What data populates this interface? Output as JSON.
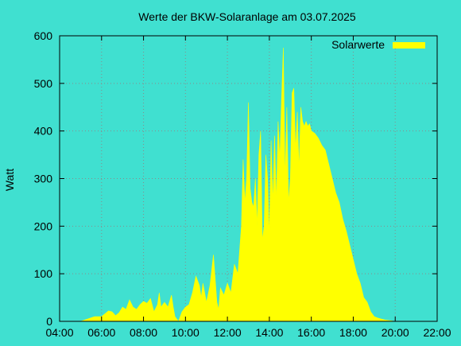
{
  "chart_data": {
    "type": "area",
    "title": "Werte der BKW-Solaranlage am 03.07.2025",
    "xlabel": "",
    "ylabel": "Watt",
    "xlim": [
      "04:00",
      "22:00"
    ],
    "ylim": [
      0,
      600
    ],
    "x_ticks": [
      "04:00",
      "06:00",
      "08:00",
      "10:00",
      "12:00",
      "14:00",
      "16:00",
      "18:00",
      "20:00",
      "22:00"
    ],
    "y_ticks": [
      0,
      100,
      200,
      300,
      400,
      500,
      600
    ],
    "grid": true,
    "legend_position": "top-right",
    "series": [
      {
        "name": "Solarwerte",
        "color": "#ffff00",
        "x": [
          "05:00",
          "05:20",
          "05:40",
          "06:00",
          "06:20",
          "06:30",
          "06:40",
          "06:50",
          "07:00",
          "07:10",
          "07:20",
          "07:30",
          "07:40",
          "07:50",
          "08:00",
          "08:10",
          "08:20",
          "08:30",
          "08:40",
          "08:45",
          "08:50",
          "09:00",
          "09:10",
          "09:20",
          "09:25",
          "09:30",
          "09:40",
          "09:50",
          "10:00",
          "10:10",
          "10:20",
          "10:30",
          "10:40",
          "10:45",
          "10:50",
          "11:00",
          "11:10",
          "11:20",
          "11:30",
          "11:35",
          "11:40",
          "11:50",
          "12:00",
          "12:10",
          "12:20",
          "12:30",
          "12:40",
          "12:45",
          "12:50",
          "12:55",
          "13:00",
          "13:05",
          "13:10",
          "13:15",
          "13:20",
          "13:25",
          "13:30",
          "13:35",
          "13:40",
          "13:45",
          "13:50",
          "13:55",
          "14:00",
          "14:05",
          "14:10",
          "14:15",
          "14:20",
          "14:25",
          "14:30",
          "14:35",
          "14:40",
          "14:45",
          "14:50",
          "14:55",
          "15:00",
          "15:05",
          "15:10",
          "15:15",
          "15:20",
          "15:25",
          "15:30",
          "15:35",
          "15:40",
          "15:45",
          "15:50",
          "15:55",
          "16:00",
          "16:10",
          "16:20",
          "16:30",
          "16:40",
          "16:50",
          "17:00",
          "17:10",
          "17:20",
          "17:30",
          "17:40",
          "17:50",
          "18:00",
          "18:10",
          "18:20",
          "18:30",
          "18:40",
          "18:50",
          "19:00",
          "19:10",
          "19:20",
          "19:30",
          "19:40",
          "19:50",
          "20:00",
          "20:15",
          "20:30",
          "20:45",
          "21:00",
          "21:15",
          "21:30"
        ],
        "values": [
          0,
          5,
          10,
          10,
          22,
          20,
          12,
          18,
          30,
          25,
          45,
          30,
          25,
          35,
          42,
          38,
          48,
          20,
          35,
          60,
          30,
          40,
          30,
          55,
          30,
          10,
          0,
          20,
          30,
          35,
          60,
          95,
          75,
          50,
          80,
          40,
          75,
          140,
          40,
          25,
          70,
          55,
          80,
          60,
          120,
          100,
          200,
          340,
          250,
          300,
          460,
          280,
          250,
          240,
          300,
          200,
          350,
          400,
          170,
          200,
          350,
          300,
          180,
          380,
          250,
          390,
          250,
          420,
          340,
          470,
          575,
          300,
          450,
          250,
          300,
          480,
          490,
          360,
          440,
          320,
          450,
          420,
          410,
          420,
          410,
          415,
          400,
          395,
          385,
          370,
          360,
          330,
          300,
          270,
          250,
          215,
          190,
          160,
          130,
          100,
          80,
          50,
          40,
          20,
          10,
          7,
          5,
          3,
          2,
          1,
          0,
          0,
          0,
          0,
          0,
          0,
          0
        ]
      }
    ]
  }
}
